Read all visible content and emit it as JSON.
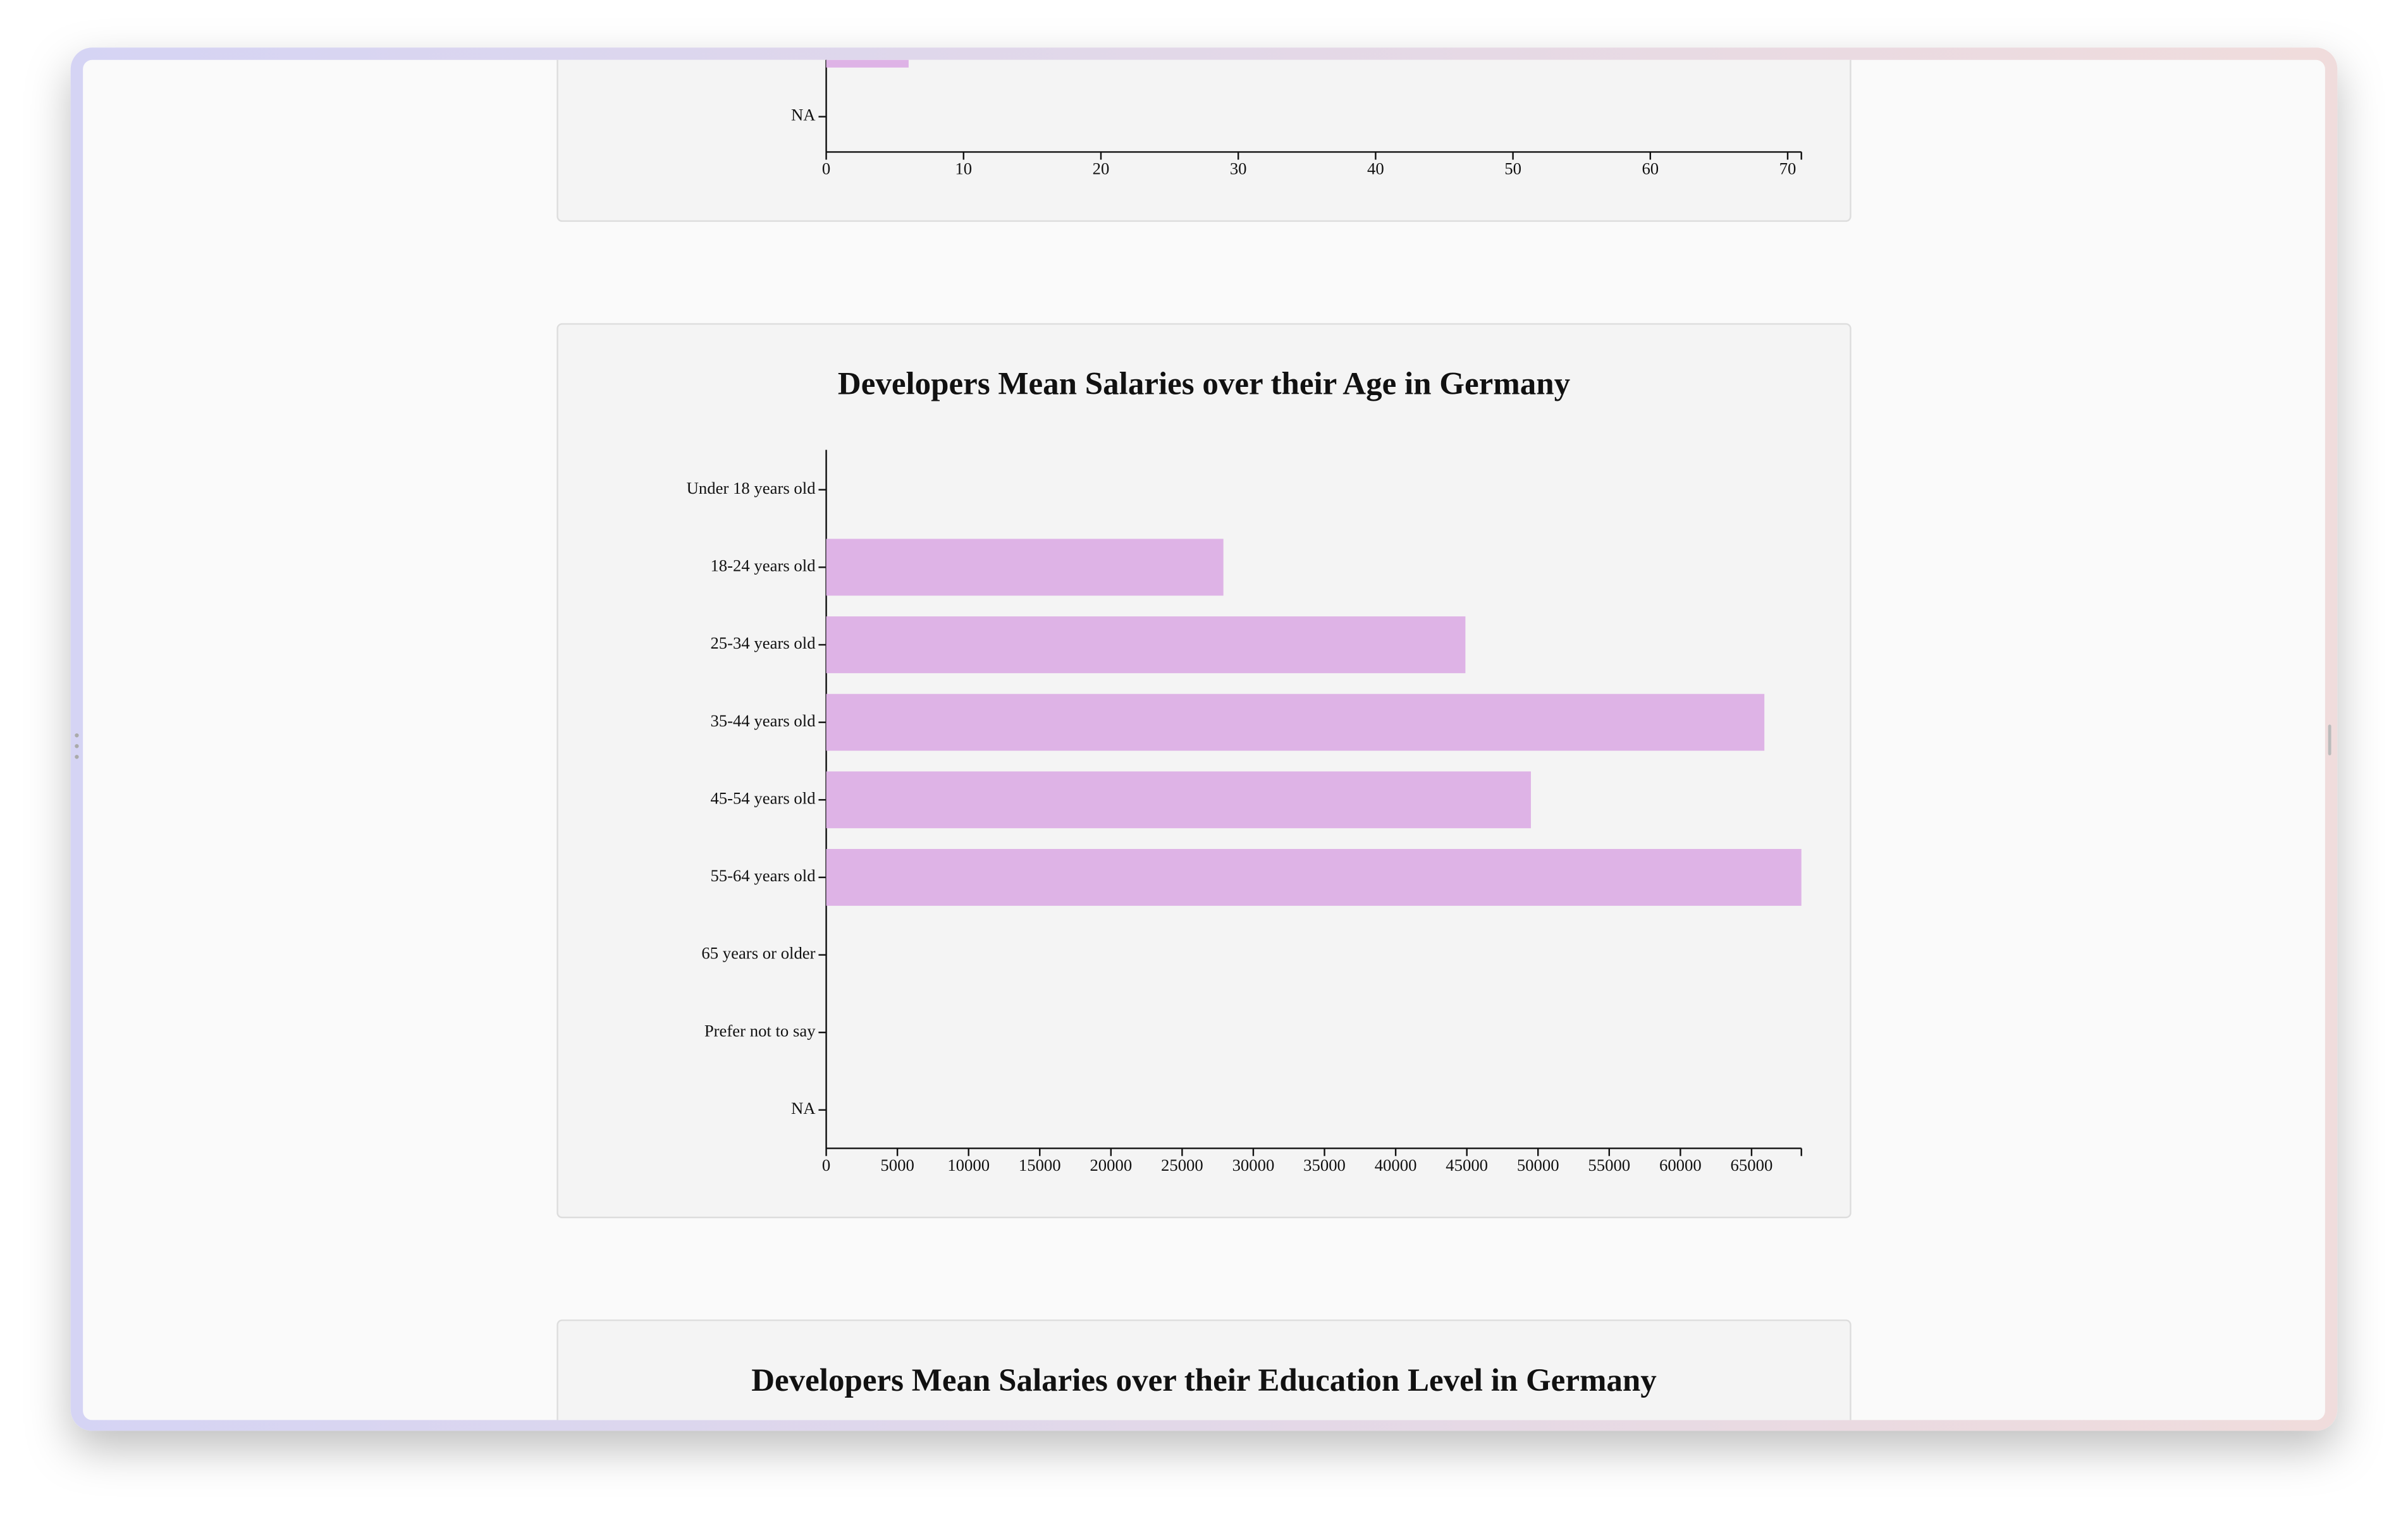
{
  "chart_data": [
    {
      "type": "bar",
      "orientation": "horizontal",
      "categories": [
        null,
        "NA"
      ],
      "values": [
        6,
        0
      ],
      "color": "#deb3e6",
      "xlim": [
        0,
        71
      ],
      "xticks": [
        0,
        10,
        20,
        30,
        40,
        50,
        60,
        70
      ]
    },
    {
      "type": "bar",
      "orientation": "horizontal",
      "title": "Developers Mean Salaries over their Age in Germany",
      "categories": [
        "Under 18 years old",
        "18-24 years old",
        "25-34 years old",
        "35-44 years old",
        "45-54 years old",
        "55-64 years old",
        "65 years or older",
        "Prefer not to say",
        "NA"
      ],
      "values": [
        0,
        27900,
        44900,
        65900,
        49500,
        68500,
        0,
        0,
        0
      ],
      "color": "#deb3e6",
      "xlim": [
        0,
        68500
      ],
      "xticks": [
        0,
        5000,
        10000,
        15000,
        20000,
        25000,
        30000,
        35000,
        40000,
        45000,
        50000,
        55000,
        60000,
        65000
      ]
    },
    {
      "type": "bar",
      "orientation": "horizontal",
      "title": "Developers Mean Salaries over their Education Level in Germany"
    }
  ]
}
